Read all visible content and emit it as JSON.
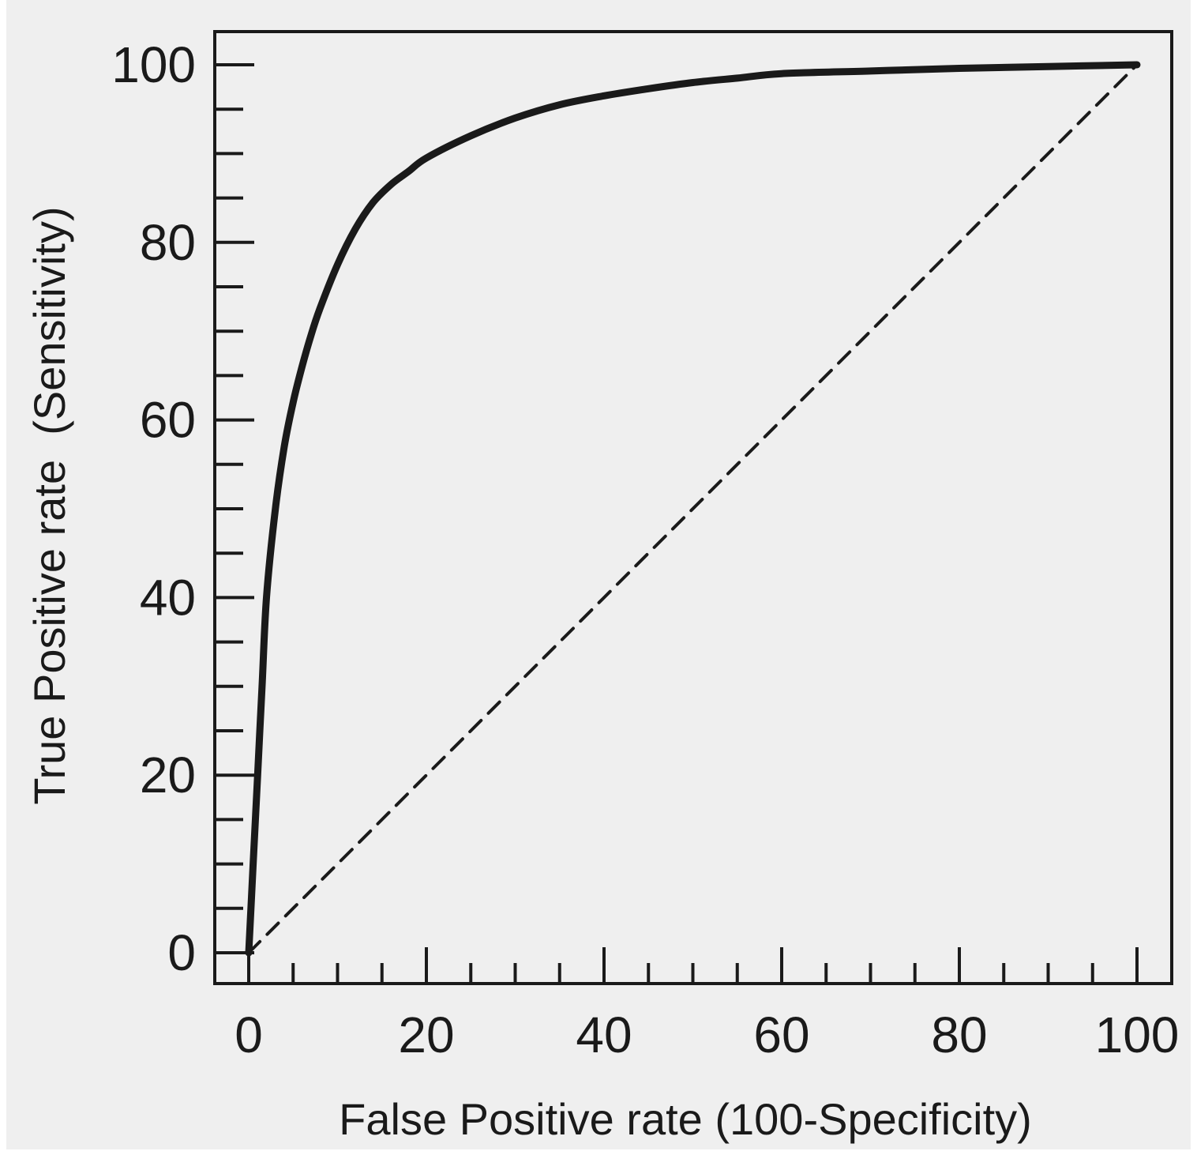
{
  "chart_data": {
    "type": "line",
    "title": "",
    "xlabel": "False Positive rate (100-Specificity)",
    "ylabel": "True Positive rate  (Sensitivity)",
    "xlim": [
      0,
      100
    ],
    "ylim": [
      0,
      100
    ],
    "x_ticks": [
      0,
      20,
      40,
      60,
      80,
      100
    ],
    "y_ticks": [
      0,
      20,
      40,
      60,
      80,
      100
    ],
    "minor_tick_step": 5,
    "grid": false,
    "legend": "none",
    "series": [
      {
        "style": "solid",
        "color": "#1a1a1a",
        "x": [
          0,
          0.5,
          1,
          1.5,
          2,
          3,
          4,
          5,
          6,
          7,
          8,
          10,
          12,
          14,
          16,
          18,
          20,
          25,
          30,
          35,
          40,
          45,
          50,
          55,
          60,
          70,
          80,
          90,
          100
        ],
        "y": [
          0,
          10,
          20,
          30,
          40,
          50,
          57,
          62,
          66,
          69.5,
          72.5,
          77.5,
          81.5,
          84.5,
          86.5,
          88,
          89.5,
          92,
          94,
          95.5,
          96.5,
          97.3,
          98,
          98.5,
          99,
          99.3,
          99.6,
          99.8,
          100
        ]
      },
      {
        "style": "dashed",
        "color": "#1a1a1a",
        "x": [
          0,
          100
        ],
        "y": [
          0,
          100
        ]
      }
    ]
  }
}
